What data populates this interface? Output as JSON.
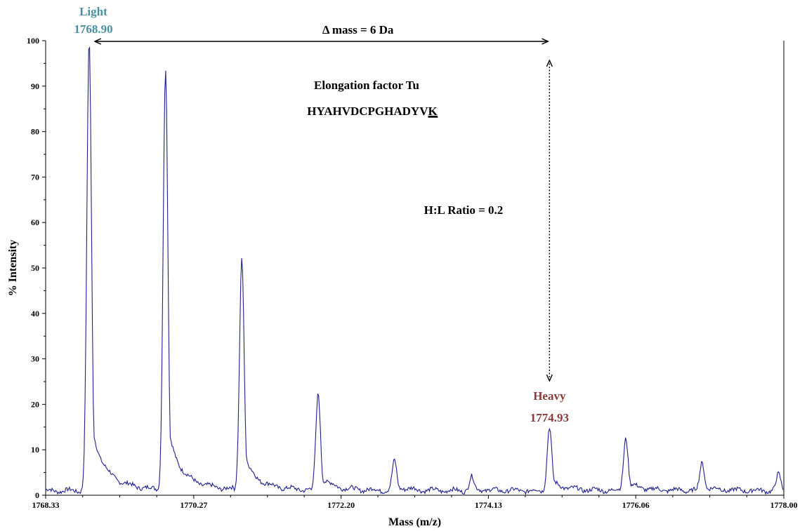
{
  "chart_data": {
    "type": "line",
    "xlabel": "Mass (m/z)",
    "ylabel": "% Intensity",
    "xlim": [
      1768.33,
      1778.0
    ],
    "ylim": [
      0,
      100
    ],
    "x_ticks": [
      "1768.33",
      "1770.27",
      "1772.20",
      "1774.13",
      "1776.06",
      "1778.00"
    ],
    "y_ticks": [
      "0",
      "10",
      "20",
      "30",
      "40",
      "50",
      "60",
      "70",
      "80",
      "90",
      "100"
    ],
    "line_color": "#1f1f8f",
    "peaks": [
      {
        "x": 1768.9,
        "y": 100
      },
      {
        "x": 1769.9,
        "y": 94
      },
      {
        "x": 1770.9,
        "y": 52.5
      },
      {
        "x": 1771.9,
        "y": 22.5
      },
      {
        "x": 1772.9,
        "y": 7.5
      },
      {
        "x": 1773.91,
        "y": 4
      },
      {
        "x": 1774.93,
        "y": 15
      },
      {
        "x": 1775.93,
        "y": 12.8
      },
      {
        "x": 1776.93,
        "y": 7.2
      },
      {
        "x": 1777.93,
        "y": 4.5
      }
    ],
    "annotations": {
      "light_label": "Light",
      "light_mass": "1768.90",
      "heavy_label": "Heavy",
      "heavy_mass": "1774.93",
      "delta_mass": "Δ mass = 6 Da",
      "protein": "Elongation factor Tu",
      "peptide_prefix": "HYAHVDCPGHADYV",
      "peptide_suffix": "K",
      "ratio": "H:L Ratio = 0.2"
    },
    "colors": {
      "light": "#4a8fa0",
      "heavy": "#8b3a3a",
      "spectrum": "#1f1f8f"
    }
  }
}
